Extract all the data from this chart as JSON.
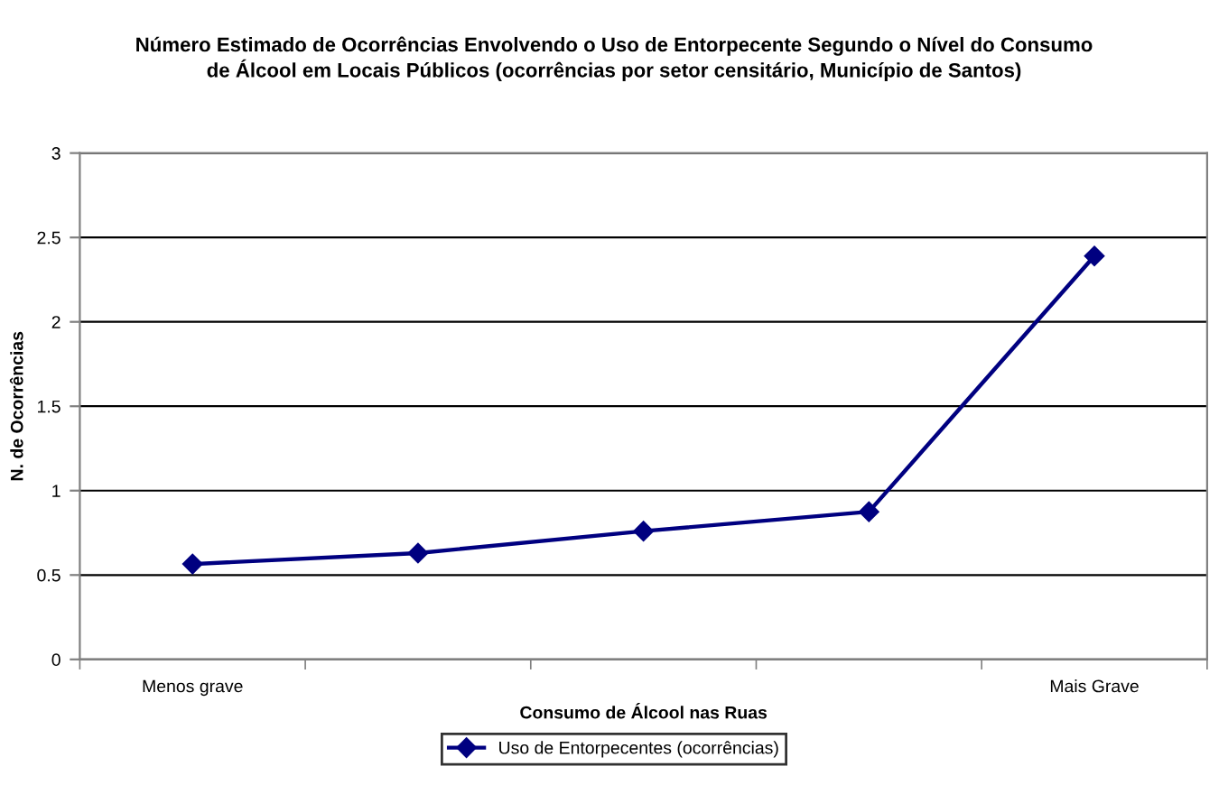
{
  "chart_data": {
    "type": "line",
    "title": "Número Estimado de Ocorrências Envolvendo o Uso de Entorpecente Segundo o Nível do Consumo\nde Álcool em Locais Públicos (ocorrências por setor censitário, Município de Santos)",
    "xlabel": "Consumo de Álcool nas Ruas",
    "ylabel": "N. de Ocorrências",
    "categories": [
      "Menos grave",
      null,
      null,
      null,
      "Mais Grave"
    ],
    "series": [
      {
        "name": "Uso de Entorpecentes (ocorrências)",
        "color": "#000080",
        "values": [
          0.565,
          0.63,
          0.76,
          0.875,
          2.39
        ]
      }
    ],
    "ylim": [
      0,
      3
    ],
    "yticks": [
      0,
      0.5,
      1,
      1.5,
      2,
      2.5,
      3
    ],
    "grid": "y",
    "legend": "bottom",
    "marker": "diamond",
    "line_style": "solid"
  }
}
